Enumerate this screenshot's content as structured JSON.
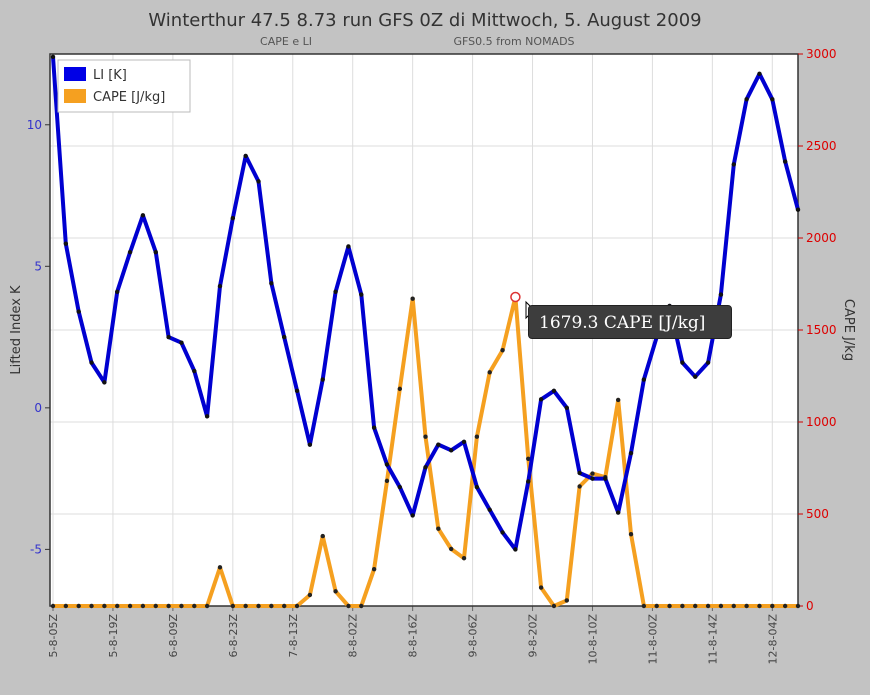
{
  "chart_data": {
    "type": "line",
    "title": "Winterthur 47.5 8.73 run GFS 0Z di Mittwoch, 5. August 2009",
    "subtitle_left": "CAPE e LI",
    "subtitle_right": "GFS0.5 from NOMADS",
    "ylabel_left": "Lifted Index K",
    "ylabel_right": "CAPE J/kg",
    "ylim_left": [
      -7,
      12.5
    ],
    "ylim_right": [
      0,
      3000
    ],
    "yticks_left": [
      10,
      5,
      0,
      -5
    ],
    "yticks_right": [
      3000,
      2500,
      2000,
      1500,
      1000,
      500,
      0
    ],
    "x_start_hour": 5,
    "x_step_hours": 3,
    "x_tick_labels": [
      "5-8-05Z",
      "5-8-19Z",
      "6-8-09Z",
      "6-8-23Z",
      "7-8-13Z",
      "8-8-02Z",
      "8-8-16Z",
      "9-8-06Z",
      "9-8-20Z",
      "10-8-10Z",
      "11-8-00Z",
      "11-8-14Z",
      "12-8-04Z"
    ],
    "grid": true,
    "legend_position": "top-left",
    "series": [
      {
        "name": "LI [K]",
        "axis": "left",
        "color": "#0000d0",
        "values": [
          12.4,
          5.8,
          3.4,
          1.6,
          0.9,
          4.1,
          5.5,
          6.8,
          5.5,
          2.5,
          2.3,
          1.3,
          -0.3,
          4.3,
          6.7,
          8.9,
          8.0,
          4.4,
          2.5,
          0.6,
          -1.3,
          1.0,
          4.1,
          5.7,
          4.0,
          -0.7,
          -2.0,
          -2.8,
          -3.8,
          -2.1,
          -1.3,
          -1.5,
          -1.2,
          -2.8,
          -3.6,
          -4.4,
          -5.0,
          -2.6,
          0.3,
          0.6,
          0.0,
          -2.3,
          -2.5,
          -2.5,
          -3.7,
          -1.6,
          1.0,
          2.5,
          3.6,
          1.6,
          1.1,
          1.6,
          4.0,
          8.6,
          10.9,
          11.8,
          10.9,
          8.7,
          7.0
        ]
      },
      {
        "name": "CAPE [J/kg]",
        "axis": "right",
        "color": "#f5a020",
        "values": [
          0,
          0,
          0,
          0,
          0,
          0,
          0,
          0,
          0,
          0,
          0,
          0,
          0,
          210,
          0,
          0,
          0,
          0,
          0,
          0,
          60,
          380,
          80,
          0,
          0,
          200,
          680,
          1180,
          1670,
          920,
          420,
          310,
          260,
          920,
          1270,
          1390,
          1679.3,
          800,
          100,
          0,
          30,
          650,
          720,
          700,
          1120,
          390,
          0,
          0,
          0,
          0,
          0,
          0,
          0,
          0,
          0,
          0,
          0,
          0,
          0
        ]
      }
    ],
    "tooltip": "1679.3 CAPE [J/kg]",
    "highlight_index": 36
  }
}
